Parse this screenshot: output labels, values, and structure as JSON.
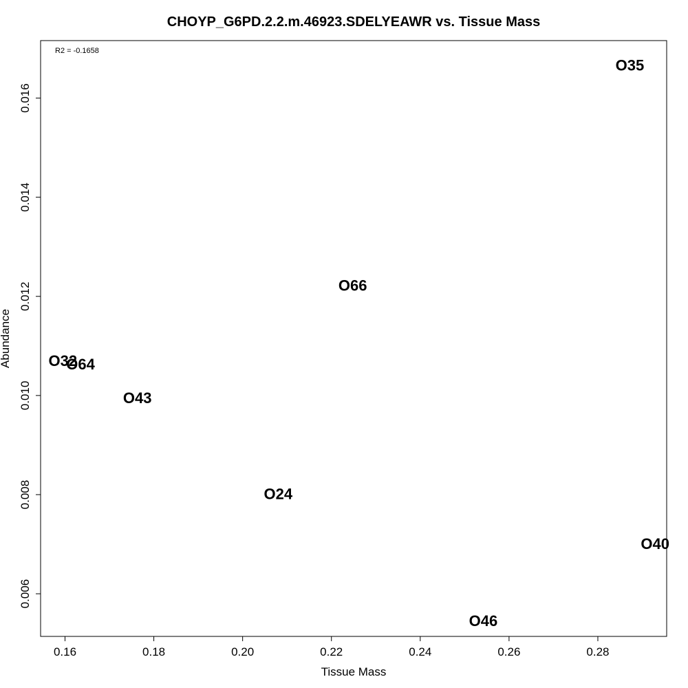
{
  "chart_data": {
    "type": "scatter",
    "title": "CHOYP_G6PD.2.2.m.46923.SDELYEAWR vs. Tissue Mass",
    "xlabel": "Tissue Mass",
    "ylabel": "Abundance",
    "annotation": "R2 = -0.1658",
    "xlim": [
      0.1545,
      0.2955
    ],
    "ylim": [
      0.00514,
      0.01716
    ],
    "xticks": [
      0.16,
      0.18,
      0.2,
      0.22,
      0.24,
      0.26,
      0.28
    ],
    "xtick_labels": [
      "0.16",
      "0.18",
      "0.20",
      "0.22",
      "0.24",
      "0.26",
      "0.28"
    ],
    "yticks": [
      0.006,
      0.008,
      0.01,
      0.012,
      0.014,
      0.016
    ],
    "ytick_labels": [
      "0.006",
      "0.008",
      "0.010",
      "0.012",
      "0.014",
      "0.016"
    ],
    "points": [
      {
        "label": "O35",
        "x": 0.2872,
        "y": 0.01666
      },
      {
        "label": "O66",
        "x": 0.2248,
        "y": 0.01222
      },
      {
        "label": "O32",
        "x": 0.1595,
        "y": 0.0107
      },
      {
        "label": "O64",
        "x": 0.1635,
        "y": 0.01063
      },
      {
        "label": "O43",
        "x": 0.1763,
        "y": 0.00995
      },
      {
        "label": "O24",
        "x": 0.208,
        "y": 0.00801
      },
      {
        "label": "O40",
        "x": 0.2929,
        "y": 0.00701
      },
      {
        "label": "O46",
        "x": 0.2542,
        "y": 0.00545
      }
    ]
  }
}
